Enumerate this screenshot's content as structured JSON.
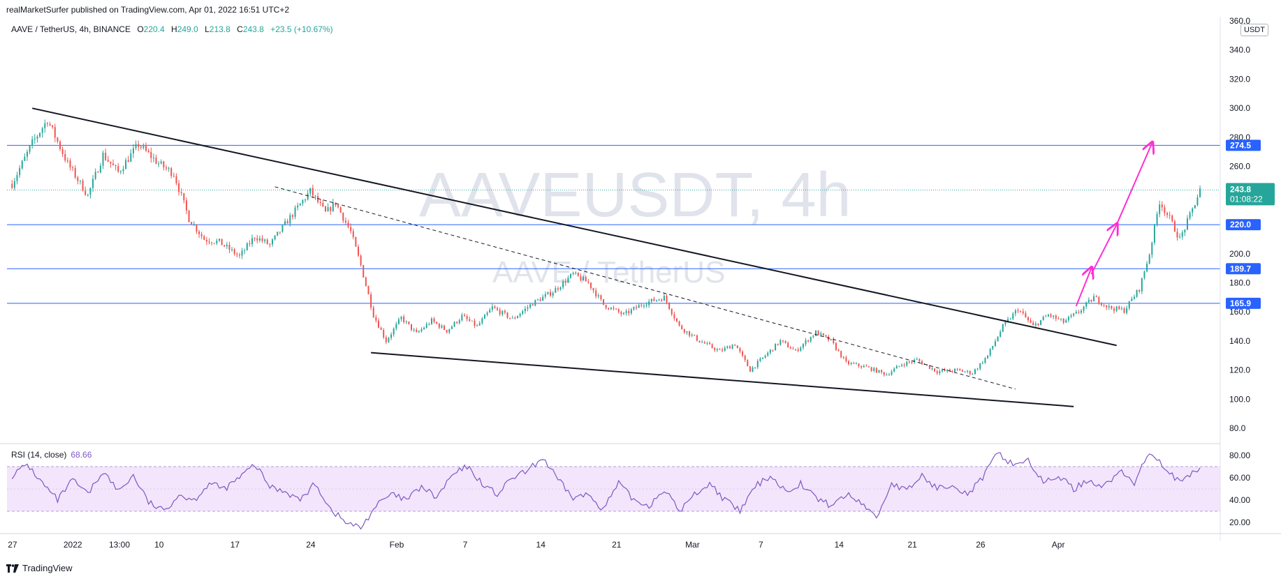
{
  "header": {
    "text": "realMarketSurfer published on TradingView.com, Apr 01, 2022 16:51 UTC+2"
  },
  "legend": {
    "symbol": "AAVE / TetherUS, 4h, BINANCE",
    "o_label": "O",
    "o": "220.4",
    "h_label": "H",
    "h": "249.0",
    "l_label": "L",
    "l": "213.8",
    "c_label": "C",
    "c": "243.8",
    "change": "+23.5 (+10.67%)"
  },
  "watermark": {
    "line1": "AAVEUSDT, 4h",
    "line2": "AAVE / TetherUS"
  },
  "unit": "USDT",
  "rsi_legend": {
    "label": "RSI (14, close)",
    "value": "68.66"
  },
  "footer": {
    "brand": "TradingView"
  },
  "colors": {
    "up": "#26a69a",
    "down": "#ef5350",
    "level": "#2962ff",
    "rsi": "#7e57c2",
    "rsi_band": "#f3e5fb",
    "arrow": "#ff2dd6",
    "trend": "#131722"
  },
  "chart_data": [
    {
      "type": "candlestick",
      "title": "AAVE / TetherUS, 4h, BINANCE",
      "ylim": [
        70,
        360
      ],
      "y_ticks": [
        "80.0",
        "100.0",
        "120.0",
        "140.0",
        "160.0",
        "180.0",
        "200.0",
        "220.0",
        "240.0",
        "260.0",
        "280.0",
        "300.0",
        "320.0",
        "340.0",
        "360.0"
      ],
      "x_ticks": [
        "27",
        "2022",
        "13:00",
        "10",
        "17",
        "24",
        "Feb",
        "7",
        "14",
        "21",
        "Mar",
        "7",
        "14",
        "21",
        "26",
        "Apr"
      ],
      "close_path": [
        {
          "t": 0,
          "p": 248
        },
        {
          "t": 8,
          "p": 276
        },
        {
          "t": 14,
          "p": 292
        },
        {
          "t": 22,
          "p": 262
        },
        {
          "t": 30,
          "p": 240
        },
        {
          "t": 36,
          "p": 268
        },
        {
          "t": 42,
          "p": 256
        },
        {
          "t": 50,
          "p": 275
        },
        {
          "t": 58,
          "p": 262
        },
        {
          "t": 64,
          "p": 255
        },
        {
          "t": 70,
          "p": 224
        },
        {
          "t": 76,
          "p": 210
        },
        {
          "t": 82,
          "p": 208
        },
        {
          "t": 90,
          "p": 198
        },
        {
          "t": 96,
          "p": 212
        },
        {
          "t": 102,
          "p": 206
        },
        {
          "t": 110,
          "p": 225
        },
        {
          "t": 118,
          "p": 243
        },
        {
          "t": 124,
          "p": 228
        },
        {
          "t": 128,
          "p": 235
        },
        {
          "t": 134,
          "p": 215
        },
        {
          "t": 138,
          "p": 192
        },
        {
          "t": 143,
          "p": 158
        },
        {
          "t": 148,
          "p": 140
        },
        {
          "t": 154,
          "p": 156
        },
        {
          "t": 160,
          "p": 145
        },
        {
          "t": 166,
          "p": 154
        },
        {
          "t": 172,
          "p": 147
        },
        {
          "t": 178,
          "p": 157
        },
        {
          "t": 184,
          "p": 150
        },
        {
          "t": 190,
          "p": 163
        },
        {
          "t": 198,
          "p": 155
        },
        {
          "t": 206,
          "p": 166
        },
        {
          "t": 214,
          "p": 174
        },
        {
          "t": 222,
          "p": 186
        },
        {
          "t": 228,
          "p": 180
        },
        {
          "t": 234,
          "p": 165
        },
        {
          "t": 242,
          "p": 158
        },
        {
          "t": 250,
          "p": 166
        },
        {
          "t": 258,
          "p": 170
        },
        {
          "t": 264,
          "p": 150
        },
        {
          "t": 272,
          "p": 140
        },
        {
          "t": 280,
          "p": 133
        },
        {
          "t": 286,
          "p": 138
        },
        {
          "t": 292,
          "p": 120
        },
        {
          "t": 298,
          "p": 130
        },
        {
          "t": 304,
          "p": 140
        },
        {
          "t": 310,
          "p": 133
        },
        {
          "t": 318,
          "p": 146
        },
        {
          "t": 324,
          "p": 140
        },
        {
          "t": 330,
          "p": 125
        },
        {
          "t": 338,
          "p": 122
        },
        {
          "t": 346,
          "p": 117
        },
        {
          "t": 352,
          "p": 124
        },
        {
          "t": 358,
          "p": 127
        },
        {
          "t": 366,
          "p": 119
        },
        {
          "t": 374,
          "p": 120
        },
        {
          "t": 380,
          "p": 118
        },
        {
          "t": 386,
          "p": 130
        },
        {
          "t": 392,
          "p": 150
        },
        {
          "t": 398,
          "p": 162
        },
        {
          "t": 404,
          "p": 150
        },
        {
          "t": 410,
          "p": 158
        },
        {
          "t": 416,
          "p": 153
        },
        {
          "t": 422,
          "p": 160
        },
        {
          "t": 428,
          "p": 170
        },
        {
          "t": 434,
          "p": 163
        },
        {
          "t": 440,
          "p": 161
        },
        {
          "t": 446,
          "p": 176
        },
        {
          "t": 450,
          "p": 200
        },
        {
          "t": 454,
          "p": 236
        },
        {
          "t": 458,
          "p": 224
        },
        {
          "t": 462,
          "p": 210
        },
        {
          "t": 466,
          "p": 226
        },
        {
          "t": 470,
          "p": 243.8
        }
      ],
      "levels": [
        {
          "value": 274.5,
          "label": "274.5"
        },
        {
          "value": 220.0,
          "label": "220.0"
        },
        {
          "value": 189.7,
          "label": "189.7"
        },
        {
          "value": 165.9,
          "label": "165.9"
        }
      ],
      "last_price": {
        "value": 243.8,
        "label": "243.8",
        "countdown": "01:08:22"
      },
      "trendlines": [
        {
          "style": "solid",
          "from": {
            "t": 8,
            "p": 300
          },
          "to": {
            "t": 437,
            "p": 137
          }
        },
        {
          "style": "solid",
          "from": {
            "t": 142,
            "p": 132
          },
          "to": {
            "t": 420,
            "p": 95
          }
        },
        {
          "style": "dashed",
          "from": {
            "t": 104,
            "p": 246
          },
          "to": {
            "t": 397,
            "p": 107
          }
        }
      ],
      "arrows": [
        {
          "from": {
            "t": 421,
            "p": 164
          },
          "to": {
            "t": 427,
            "p": 190
          }
        },
        {
          "from": {
            "t": 427,
            "p": 186
          },
          "to": {
            "t": 437,
            "p": 220
          }
        },
        {
          "from": {
            "t": 437,
            "p": 220
          },
          "to": {
            "t": 451,
            "p": 276
          }
        }
      ]
    },
    {
      "type": "line",
      "title": "RSI (14, close)",
      "ylim": [
        10,
        90
      ],
      "y_ticks": [
        "20.00",
        "40.00",
        "60.00",
        "80.00"
      ],
      "band": [
        30,
        70
      ],
      "rsi_path": [
        {
          "t": 0,
          "p": 62
        },
        {
          "t": 6,
          "p": 72
        },
        {
          "t": 12,
          "p": 55
        },
        {
          "t": 18,
          "p": 40
        },
        {
          "t": 24,
          "p": 58
        },
        {
          "t": 30,
          "p": 45
        },
        {
          "t": 36,
          "p": 66
        },
        {
          "t": 42,
          "p": 48
        },
        {
          "t": 48,
          "p": 62
        },
        {
          "t": 54,
          "p": 38
        },
        {
          "t": 60,
          "p": 30
        },
        {
          "t": 66,
          "p": 45
        },
        {
          "t": 72,
          "p": 40
        },
        {
          "t": 78,
          "p": 55
        },
        {
          "t": 84,
          "p": 50
        },
        {
          "t": 90,
          "p": 60
        },
        {
          "t": 96,
          "p": 72
        },
        {
          "t": 102,
          "p": 52
        },
        {
          "t": 108,
          "p": 48
        },
        {
          "t": 114,
          "p": 40
        },
        {
          "t": 120,
          "p": 55
        },
        {
          "t": 126,
          "p": 32
        },
        {
          "t": 132,
          "p": 20
        },
        {
          "t": 138,
          "p": 15
        },
        {
          "t": 144,
          "p": 35
        },
        {
          "t": 150,
          "p": 45
        },
        {
          "t": 156,
          "p": 40
        },
        {
          "t": 162,
          "p": 52
        },
        {
          "t": 168,
          "p": 42
        },
        {
          "t": 174,
          "p": 62
        },
        {
          "t": 180,
          "p": 70
        },
        {
          "t": 186,
          "p": 55
        },
        {
          "t": 192,
          "p": 45
        },
        {
          "t": 198,
          "p": 60
        },
        {
          "t": 204,
          "p": 66
        },
        {
          "t": 210,
          "p": 78
        },
        {
          "t": 216,
          "p": 58
        },
        {
          "t": 222,
          "p": 42
        },
        {
          "t": 228,
          "p": 45
        },
        {
          "t": 234,
          "p": 32
        },
        {
          "t": 240,
          "p": 55
        },
        {
          "t": 246,
          "p": 40
        },
        {
          "t": 252,
          "p": 35
        },
        {
          "t": 258,
          "p": 50
        },
        {
          "t": 264,
          "p": 30
        },
        {
          "t": 270,
          "p": 45
        },
        {
          "t": 276,
          "p": 55
        },
        {
          "t": 282,
          "p": 40
        },
        {
          "t": 288,
          "p": 30
        },
        {
          "t": 294,
          "p": 52
        },
        {
          "t": 300,
          "p": 62
        },
        {
          "t": 306,
          "p": 48
        },
        {
          "t": 312,
          "p": 55
        },
        {
          "t": 318,
          "p": 42
        },
        {
          "t": 324,
          "p": 35
        },
        {
          "t": 330,
          "p": 45
        },
        {
          "t": 336,
          "p": 38
        },
        {
          "t": 342,
          "p": 24
        },
        {
          "t": 348,
          "p": 55
        },
        {
          "t": 354,
          "p": 48
        },
        {
          "t": 360,
          "p": 62
        },
        {
          "t": 366,
          "p": 50
        },
        {
          "t": 372,
          "p": 55
        },
        {
          "t": 378,
          "p": 45
        },
        {
          "t": 384,
          "p": 60
        },
        {
          "t": 390,
          "p": 82
        },
        {
          "t": 396,
          "p": 72
        },
        {
          "t": 402,
          "p": 76
        },
        {
          "t": 408,
          "p": 55
        },
        {
          "t": 414,
          "p": 62
        },
        {
          "t": 420,
          "p": 50
        },
        {
          "t": 426,
          "p": 58
        },
        {
          "t": 432,
          "p": 52
        },
        {
          "t": 438,
          "p": 66
        },
        {
          "t": 444,
          "p": 55
        },
        {
          "t": 450,
          "p": 84
        },
        {
          "t": 456,
          "p": 70
        },
        {
          "t": 462,
          "p": 55
        },
        {
          "t": 470,
          "p": 68.66
        }
      ]
    }
  ]
}
